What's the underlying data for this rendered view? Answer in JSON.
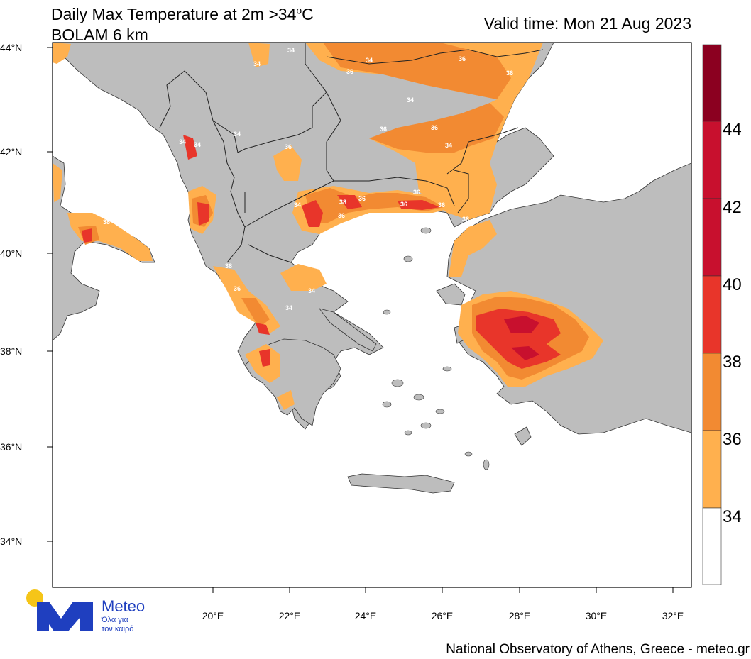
{
  "header": {
    "title_line1_pre": "Daily Max Temperature at 2m >34",
    "title_line1_deg": "o",
    "title_line1_post": "C",
    "title_line2": "BOLAM 6 km",
    "valid_time": "Valid time: Mon 21 Aug 2023"
  },
  "map": {
    "lat_ticks": [
      "44°N",
      "42°N",
      "40°N",
      "38°N",
      "36°N",
      "34°N"
    ],
    "lon_ticks": [
      "20°E",
      "22°E",
      "24°E",
      "26°E",
      "28°E",
      "30°E",
      "32°E"
    ],
    "contour_labels": [
      "34",
      "34",
      "34",
      "36",
      "36",
      "36",
      "34",
      "36",
      "36",
      "34",
      "34",
      "36",
      "34",
      "34",
      "38",
      "36",
      "36",
      "34",
      "36",
      "36",
      "36",
      "38",
      "38",
      "38",
      "36",
      "34",
      "34"
    ]
  },
  "colorbar": {
    "labels": [
      "44",
      "42",
      "40",
      "38",
      "36",
      "34"
    ],
    "colors": [
      "#8b0020",
      "#c8102e",
      "#e8352a",
      "#f28a32",
      "#ffb04e",
      "#ffffff"
    ]
  },
  "logo": {
    "name": "Meteo",
    "sub1": "Όλα για",
    "sub2": "τον καιρό"
  },
  "footer": "National Observatory of Athens, Greece - meteo.gr"
}
